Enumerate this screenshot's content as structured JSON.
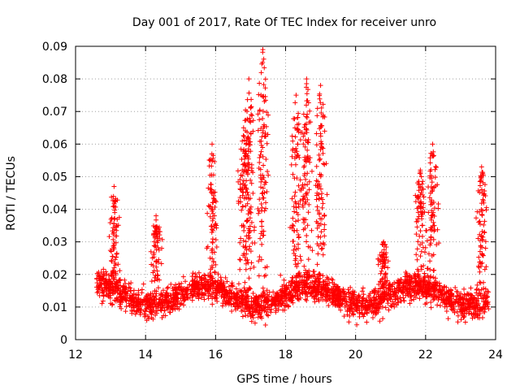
{
  "chart_data": {
    "type": "scatter",
    "title": "Day 001 of 2017, Rate Of TEC Index for receiver unro",
    "xlabel": "GPS time / hours",
    "ylabel": "ROTI / TECUs",
    "xlim": [
      12,
      24
    ],
    "ylim": [
      0,
      0.09
    ],
    "x_ticks": [
      12,
      14,
      16,
      18,
      20,
      22,
      24
    ],
    "x_tick_labels": [
      "12",
      "14",
      "16",
      "18",
      "20",
      "22",
      "24"
    ],
    "y_ticks": [
      0,
      0.01,
      0.02,
      0.03,
      0.04,
      0.05,
      0.06,
      0.07,
      0.08,
      0.09
    ],
    "y_tick_labels": [
      "0",
      "0.01",
      "0.02",
      "0.03",
      "0.04",
      "0.05",
      "0.06",
      "0.07",
      "0.08",
      "0.09"
    ],
    "grid": true,
    "marker": "plus",
    "color": "#ff0000",
    "x_range_of_data": [
      12.6,
      23.8
    ],
    "peaks": [
      {
        "x": 13.1,
        "y": 0.047
      },
      {
        "x": 14.3,
        "y": 0.038
      },
      {
        "x": 15.9,
        "y": 0.06
      },
      {
        "x": 16.8,
        "y": 0.065
      },
      {
        "x": 16.95,
        "y": 0.08
      },
      {
        "x": 17.35,
        "y": 0.089
      },
      {
        "x": 18.3,
        "y": 0.075
      },
      {
        "x": 18.6,
        "y": 0.08
      },
      {
        "x": 19.0,
        "y": 0.078
      },
      {
        "x": 20.8,
        "y": 0.03
      },
      {
        "x": 21.85,
        "y": 0.052
      },
      {
        "x": 22.2,
        "y": 0.06
      },
      {
        "x": 23.6,
        "y": 0.053
      }
    ]
  }
}
